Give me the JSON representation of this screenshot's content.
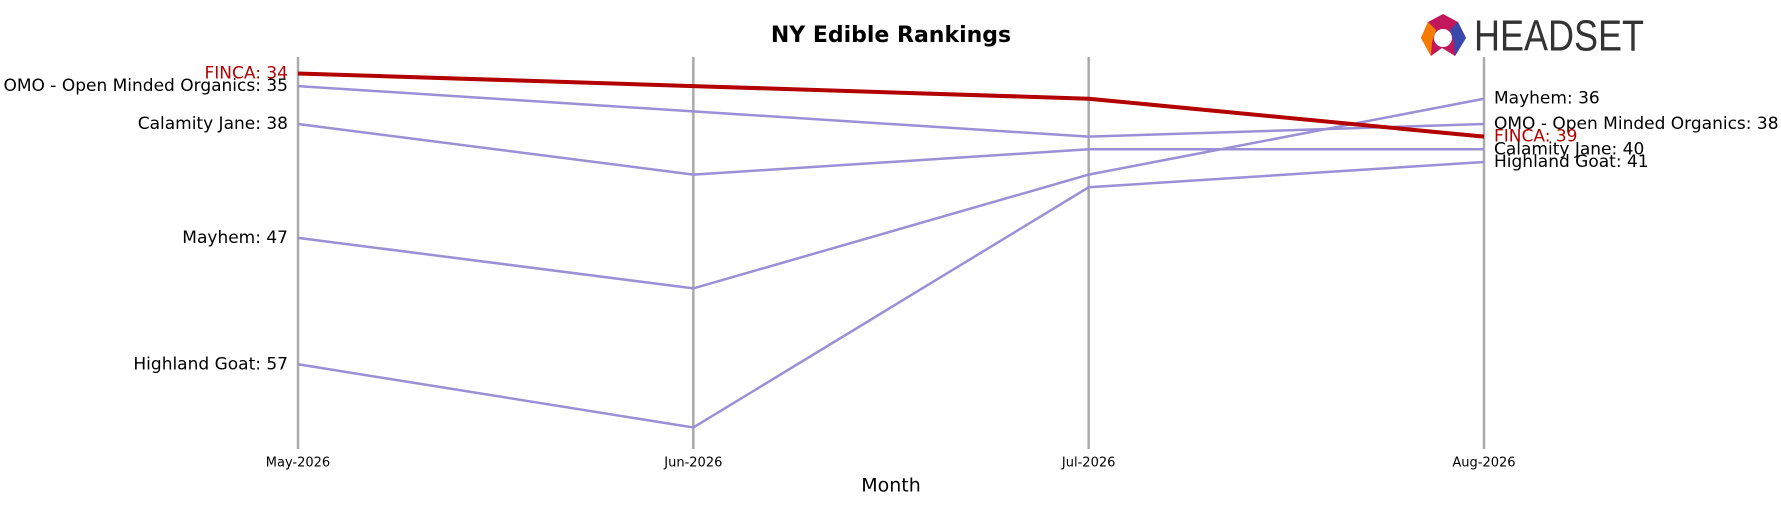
{
  "logo": "HEADSET",
  "chart_data": {
    "type": "line",
    "title": "NY Edible Rankings",
    "x_label": "Month",
    "categories": [
      "May-2026",
      "Jun-2026",
      "Jul-2026",
      "Aug-2026"
    ],
    "ylim": [
      63.7,
      32.7
    ],
    "grid": true,
    "series": [
      {
        "name": "OMO - Open Minded Organics",
        "color": "#9b8fd6",
        "values": [
          35,
          37,
          39,
          38
        ],
        "value_labels": [
          "OMO - Open Minded Organics: 35",
          null,
          null,
          "OMO - Open Minded Organics: 38"
        ]
      },
      {
        "name": "Calamity Jane",
        "color": "#9b8fd6",
        "values": [
          38,
          42,
          40,
          40
        ],
        "value_labels": [
          "Calamity Jane: 38",
          null,
          null,
          "Calamity Jane: 40"
        ]
      },
      {
        "name": "Mayhem",
        "color": "#9b8fd6",
        "values": [
          47,
          51,
          42,
          36
        ],
        "value_labels": [
          "Mayhem: 47",
          null,
          null,
          "Mayhem: 36"
        ]
      },
      {
        "name": "Highland Goat",
        "color": "#9b8fd6",
        "values": [
          57,
          62,
          43,
          41
        ],
        "value_labels": [
          "Highland Goat: 57",
          null,
          null,
          "Highland Goat: 41"
        ]
      },
      {
        "name": "FINCA",
        "color": "#b30000",
        "values": [
          34,
          35,
          36,
          39
        ],
        "value_labels": [
          "FINCA: 34",
          null,
          null,
          "FINCA: 39"
        ],
        "highlight": true
      }
    ]
  }
}
